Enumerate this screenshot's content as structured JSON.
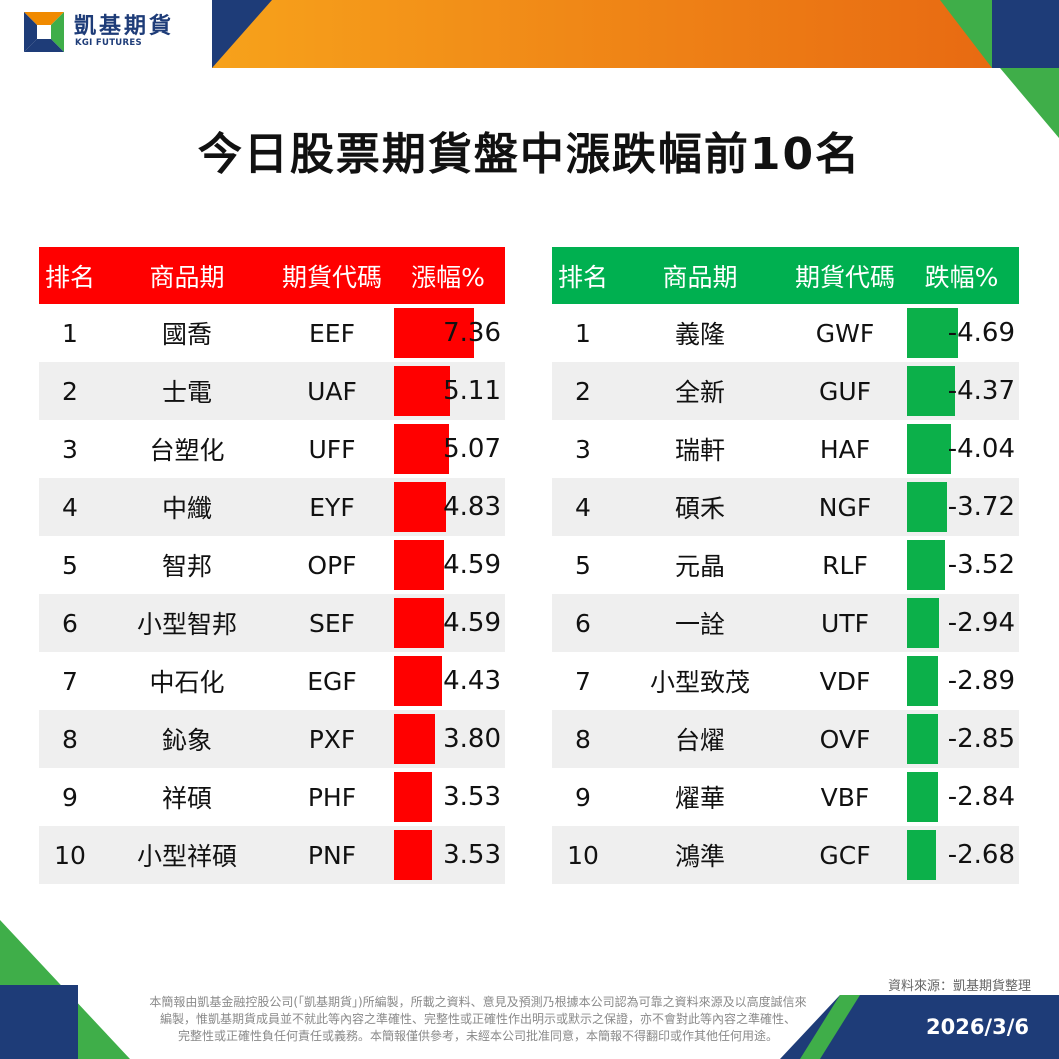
{
  "brand": {
    "name_zh": "凱基期貨",
    "name_en": "KGI FUTURES"
  },
  "title": "今日股票期貨盤中漲跌幅前10名",
  "colors": {
    "gain": "#ff0000",
    "loss": "#00b050",
    "navy": "#1e3c78",
    "orange": "#f08a00",
    "green": "#3fae49"
  },
  "gainers": {
    "headers": [
      "排名",
      "商品期",
      "期貨代碼",
      "漲幅%"
    ],
    "rows": [
      {
        "rank": "1",
        "name": "國喬",
        "code": "EEF",
        "pct": "7.36"
      },
      {
        "rank": "2",
        "name": "士電",
        "code": "UAF",
        "pct": "5.11"
      },
      {
        "rank": "3",
        "name": "台塑化",
        "code": "UFF",
        "pct": "5.07"
      },
      {
        "rank": "4",
        "name": "中纖",
        "code": "EYF",
        "pct": "4.83"
      },
      {
        "rank": "5",
        "name": "智邦",
        "code": "OPF",
        "pct": "4.59"
      },
      {
        "rank": "6",
        "name": "小型智邦",
        "code": "SEF",
        "pct": "4.59"
      },
      {
        "rank": "7",
        "name": "中石化",
        "code": "EGF",
        "pct": "4.43"
      },
      {
        "rank": "8",
        "name": "鈊象",
        "code": "PXF",
        "pct": "3.80"
      },
      {
        "rank": "9",
        "name": "祥碩",
        "code": "PHF",
        "pct": "3.53"
      },
      {
        "rank": "10",
        "name": "小型祥碩",
        "code": "PNF",
        "pct": "3.53"
      }
    ]
  },
  "losers": {
    "headers": [
      "排名",
      "商品期",
      "期貨代碼",
      "跌幅%"
    ],
    "rows": [
      {
        "rank": "1",
        "name": "義隆",
        "code": "GWF",
        "pct": "-4.69"
      },
      {
        "rank": "2",
        "name": "全新",
        "code": "GUF",
        "pct": "-4.37"
      },
      {
        "rank": "3",
        "name": "瑞軒",
        "code": "HAF",
        "pct": "-4.04"
      },
      {
        "rank": "4",
        "name": "碩禾",
        "code": "NGF",
        "pct": "-3.72"
      },
      {
        "rank": "5",
        "name": "元晶",
        "code": "RLF",
        "pct": "-3.52"
      },
      {
        "rank": "6",
        "name": "一詮",
        "code": "UTF",
        "pct": "-2.94"
      },
      {
        "rank": "7",
        "name": "小型致茂",
        "code": "VDF",
        "pct": "-2.89"
      },
      {
        "rank": "8",
        "name": "台燿",
        "code": "OVF",
        "pct": "-2.85"
      },
      {
        "rank": "9",
        "name": "燿華",
        "code": "VBF",
        "pct": "-2.84"
      },
      {
        "rank": "10",
        "name": "鴻準",
        "code": "GCF",
        "pct": "-2.68"
      }
    ]
  },
  "footer": {
    "source": "資料來源：凱基期貨整理",
    "disclaimer": [
      "本簡報由凱基金融控股公司(「凱基期貨」)所編製，所載之資料、意見及預測乃根據本公司認為可靠之資料來源及以高度誠信來",
      "編製，惟凱基期貨成員並不就此等內容之準確性、完整性或正確性作出明示或默示之保證，亦不會對此等內容之準確性、",
      "完整性或正確性負任何責任或義務。本簡報僅供參考，未經本公司批准同意，本簡報不得翻印或作其他任何用途。"
    ],
    "date": "2026/3/6"
  }
}
